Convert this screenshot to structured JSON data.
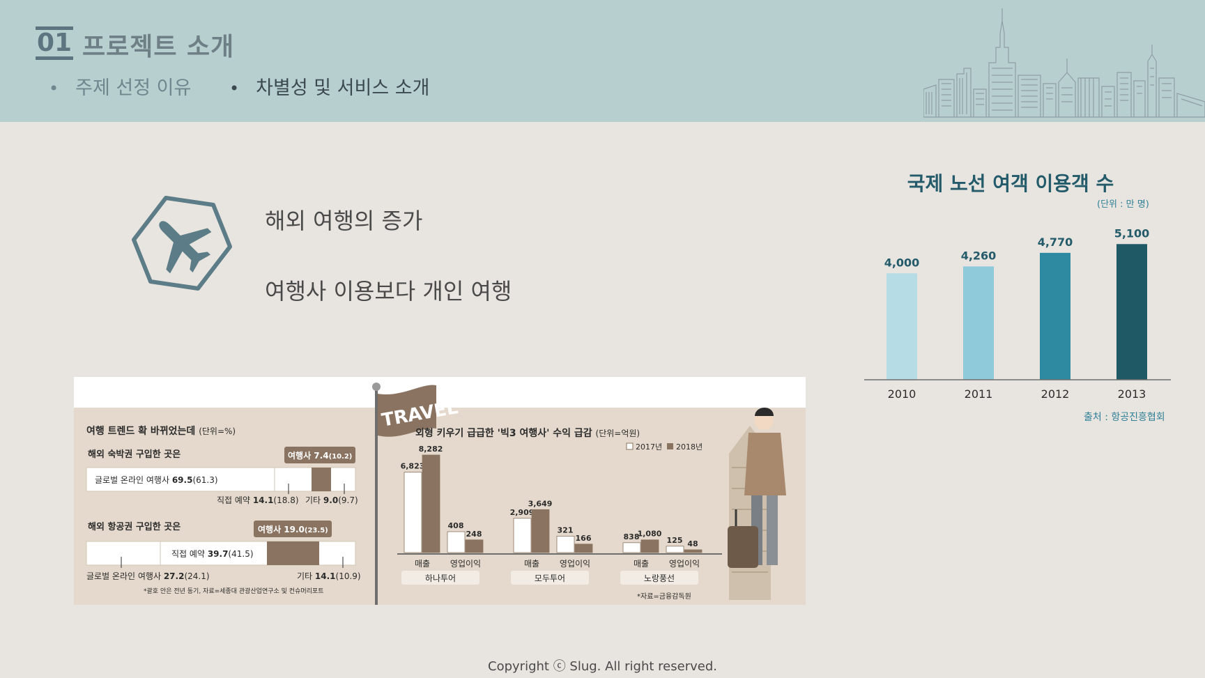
{
  "header": {
    "section_number": "01",
    "section_title": "프로젝트 소개",
    "nav": [
      {
        "label": "주제 선정 이유"
      },
      {
        "label": "차별성 및 서비스 소개"
      }
    ]
  },
  "main": {
    "icon": "airplane-icon",
    "points": [
      "해외 여행의 증가",
      "여행사 이용보다 개인 여행"
    ]
  },
  "infographic": {
    "travel_flag": "TRAVEL",
    "left_title": "여행 트렌드 확 바뀌었는데",
    "left_unit": "(단위=%)",
    "hotel_label": "해외 숙박권 구입한 곳은",
    "hotel_agency": "여행사 7.4",
    "hotel_agency_prev": "(10.2)",
    "hotel_online": "글로벌 온라인 여행사",
    "hotel_online_val": "69.5",
    "hotel_online_prev": "(61.3)",
    "hotel_direct": "직접 예약",
    "hotel_direct_val": "14.1",
    "hotel_direct_prev": "(18.8)",
    "hotel_etc": "기타",
    "hotel_etc_val": "9.0",
    "hotel_etc_prev": "(9.7)",
    "air_label": "해외 항공권 구입한 곳은",
    "air_agency": "여행사 19.0",
    "air_agency_prev": "(23.5)",
    "air_direct": "직접 예약",
    "air_direct_val": "39.7",
    "air_direct_prev": "(41.5)",
    "air_online": "글로벌 온라인 여행사",
    "air_online_val": "27.2",
    "air_online_prev": "(24.1)",
    "air_etc": "기타",
    "air_etc_val": "14.1",
    "air_etc_prev": "(10.9)",
    "left_note": "*괄호 안은 전년 동기, 자료=세종대 관광산업연구소 및 컨슈머리포트",
    "right_title": "외형 키우기 급급한 '빅3 여행사' 수익 급감",
    "right_unit": "(단위=억원)",
    "legend": [
      "2017년",
      "2018년"
    ],
    "metric_labels": [
      "매출",
      "영업이익"
    ],
    "companies": [
      {
        "name": "하나투어",
        "sales": [
          "6,823",
          "8,282"
        ],
        "profit": [
          "408",
          "248"
        ]
      },
      {
        "name": "모두투어",
        "sales": [
          "2,909",
          "3,649"
        ],
        "profit": [
          "321",
          "166"
        ]
      },
      {
        "name": "노랑풍선",
        "sales": [
          "838",
          "1,080"
        ],
        "profit": [
          "125",
          "48"
        ]
      }
    ],
    "right_note": "*자료=금융감독원"
  },
  "chart_data": {
    "type": "bar",
    "title": "국제 노선 여객 이용객 수",
    "unit": "(단위 : 만 명)",
    "categories": [
      "2010",
      "2011",
      "2012",
      "2013"
    ],
    "values": [
      4000,
      4260,
      4770,
      5100
    ],
    "value_labels": [
      "4,000",
      "4,260",
      "4,770",
      "5,100"
    ],
    "colors": [
      "#b6dce6",
      "#8fcadb",
      "#2e8aa0",
      "#1f5966"
    ],
    "ylim": [
      0,
      5500
    ],
    "source": "출처 : 항공진흥협회"
  },
  "footer": {
    "copyright": "Copyright ⓒ Slug. All right reserved."
  }
}
